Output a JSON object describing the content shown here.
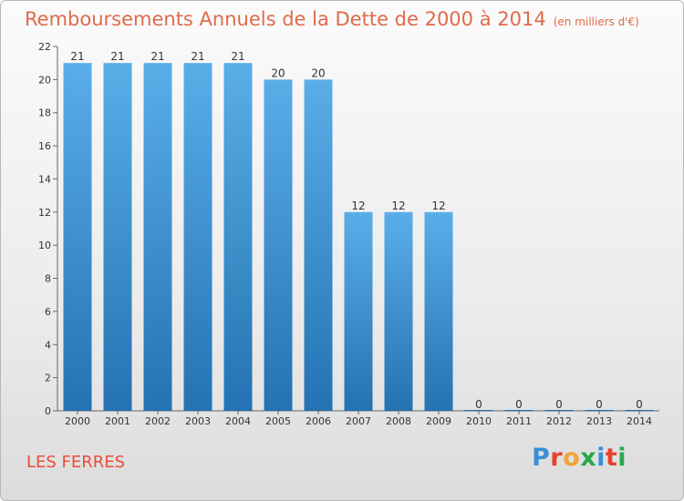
{
  "header": {
    "title": "Remboursements Annuels de la Dette de 2000 à 2014",
    "subtitle": "(en milliers d'€)"
  },
  "footer": {
    "commune": "LES FERRES",
    "logo_letters": [
      "P",
      "r",
      "o",
      "x",
      "i",
      "t",
      "i"
    ]
  },
  "colors": {
    "bar_top": "#5aaee8",
    "bar_bottom": "#2472b2",
    "title": "#e06a4a",
    "logo": [
      "#3a8fd6",
      "#e8402c",
      "#f2a23a",
      "#2aa84a",
      "#3a8fd6",
      "#e8402c",
      "#2aa84a"
    ]
  },
  "chart_data": {
    "type": "bar",
    "title": "Remboursements Annuels de la Dette de 2000 à 2014",
    "xlabel": "",
    "ylabel": "",
    "ylim": [
      0,
      22
    ],
    "yticks": [
      0,
      2,
      4,
      6,
      8,
      10,
      12,
      14,
      16,
      18,
      20,
      22
    ],
    "categories": [
      "2000",
      "2001",
      "2002",
      "2003",
      "2004",
      "2005",
      "2006",
      "2007",
      "2008",
      "2009",
      "2010",
      "2011",
      "2012",
      "2013",
      "2014"
    ],
    "values": [
      21,
      21,
      21,
      21,
      21,
      20,
      20,
      12,
      12,
      12,
      0,
      0,
      0,
      0,
      0
    ],
    "grid": false,
    "legend": "none"
  }
}
